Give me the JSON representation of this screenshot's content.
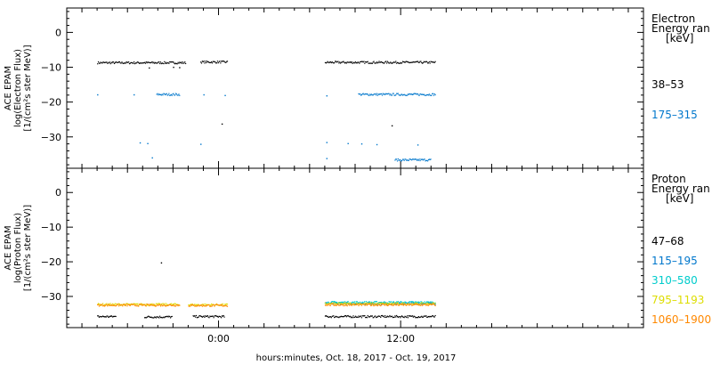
{
  "chart_data": [
    {
      "type": "scatter",
      "ylabel_lines": [
        "ACE EPAM",
        "log(Electron Flux)",
        "[1/(cm²s ster MeV)]"
      ],
      "ylim": [
        -39,
        7
      ],
      "yticks": [
        0,
        -10,
        -20,
        -30
      ],
      "ytick_labels": [
        "0",
        "−10",
        "−20",
        "−30"
      ],
      "legend_title": [
        "Electron",
        "Energy ran",
        "[keV]"
      ],
      "series": [
        {
          "name": "38–53",
          "color": "#000000",
          "segments": [
            [
              -8.0,
              -2.2,
              -8.7
            ],
            [
              -1.2,
              0.6,
              -8.5
            ],
            [
              7.0,
              14.3,
              -8.6
            ]
          ],
          "outliers": [
            [
              -4.6,
              -10.2
            ],
            [
              -3.0,
              -10.0
            ],
            [
              -2.6,
              -10.1
            ],
            [
              0.2,
              -26.3
            ],
            [
              11.4,
              -26.8
            ]
          ]
        },
        {
          "name": "175–315",
          "color": "#0077cc",
          "segments": [
            [
              -4.1,
              -2.6,
              -17.8
            ],
            [
              9.2,
              14.3,
              -17.8
            ]
          ],
          "outliers": [
            [
              -8.0,
              -17.9
            ],
            [
              -5.6,
              -17.9
            ],
            [
              -1.0,
              -17.9
            ],
            [
              0.4,
              -18.1
            ],
            [
              7.1,
              -18.2
            ],
            [
              -5.2,
              -31.7
            ],
            [
              -4.7,
              -31.9
            ],
            [
              -1.2,
              -32.1
            ],
            [
              7.1,
              -31.6
            ],
            [
              8.5,
              -31.9
            ],
            [
              9.4,
              -32.0
            ],
            [
              10.4,
              -32.2
            ],
            [
              13.1,
              -32.3
            ],
            [
              -4.4,
              -36.0
            ],
            [
              7.1,
              -36.2
            ]
          ],
          "extra_segments": [
            [
              11.6,
              14.0,
              -36.6
            ]
          ]
        }
      ]
    },
    {
      "type": "scatter",
      "ylabel_lines": [
        "ACE EPAM",
        "log(Proton Flux)",
        "[1/(cm²s ster MeV)]"
      ],
      "ylim": [
        -39,
        7
      ],
      "yticks": [
        0,
        -10,
        -20,
        -30
      ],
      "ytick_labels": [
        "0",
        "−10",
        "−20",
        "−30"
      ],
      "legend_title": [
        "Proton",
        "Energy ran",
        "[keV]"
      ],
      "series": [
        {
          "name": "47–68",
          "color": "#000000",
          "segments": [
            [
              -8.0,
              -6.8,
              -35.8
            ],
            [
              -4.9,
              -3.1,
              -35.9
            ],
            [
              -1.7,
              0.4,
              -35.8
            ],
            [
              7.0,
              14.3,
              -35.8
            ]
          ],
          "outliers": [
            [
              -3.8,
              -20.3
            ]
          ]
        },
        {
          "name": "115–195",
          "color": "#0077cc",
          "segments": [
            [
              7.0,
              14.3,
              -32.0
            ]
          ],
          "outliers": []
        },
        {
          "name": "310–580",
          "color": "#00cccc",
          "segments": [
            [
              7.0,
              14.3,
              -31.7
            ]
          ],
          "outliers": []
        },
        {
          "name": "795–1193",
          "color": "#dddd00",
          "segments": [
            [
              -8.0,
              -2.6,
              -32.3
            ],
            [
              -2.0,
              0.6,
              -32.4
            ],
            [
              7.0,
              14.3,
              -32.1
            ]
          ],
          "outliers": []
        },
        {
          "name": "1060–1900",
          "color": "#ff8800",
          "segments": [
            [
              -8.0,
              -2.6,
              -32.5
            ],
            [
              -2.0,
              0.6,
              -32.6
            ],
            [
              7.0,
              14.3,
              -32.4
            ]
          ],
          "outliers": []
        }
      ]
    }
  ],
  "x_axis": {
    "range_hours": [
      -10,
      28
    ],
    "major_ticks": [
      0,
      12
    ],
    "major_labels": [
      "0:00",
      "12:00"
    ],
    "title": "hours:minutes, Oct. 18, 2017 - Oct. 19, 2017"
  }
}
